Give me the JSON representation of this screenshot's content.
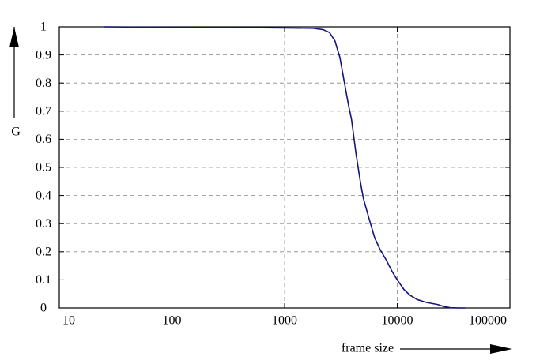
{
  "chart_data": {
    "type": "line",
    "x_label": "frame size",
    "y_label": "G",
    "x_scale": "log",
    "grid": true,
    "x": [
      25,
      100,
      500,
      1000,
      1800,
      2200,
      2500,
      2800,
      3100,
      3400,
      3700,
      3930,
      4300,
      4700,
      5000,
      5600,
      6300,
      7000,
      8000,
      9000,
      10000,
      11500,
      13000,
      15000,
      18000,
      23000,
      26000,
      29500,
      35000,
      40000
    ],
    "series": [
      {
        "color": "#14147a",
        "values": [
          1.0,
          0.998,
          0.997,
          0.996,
          0.995,
          0.99,
          0.98,
          0.95,
          0.89,
          0.8,
          0.72,
          0.67,
          0.55,
          0.45,
          0.39,
          0.32,
          0.25,
          0.21,
          0.17,
          0.13,
          0.1,
          0.065,
          0.045,
          0.03,
          0.02,
          0.012,
          0.005,
          0.001,
          0.0,
          0.0
        ]
      }
    ],
    "xlim": [
      10,
      100000
    ],
    "xticks": [
      10,
      100,
      1000,
      10000,
      100000
    ],
    "ylim": [
      0,
      1
    ],
    "yticks": [
      0,
      0.1,
      0.2,
      0.3,
      0.4,
      0.5,
      0.6,
      0.7,
      0.8,
      0.9,
      1
    ]
  }
}
